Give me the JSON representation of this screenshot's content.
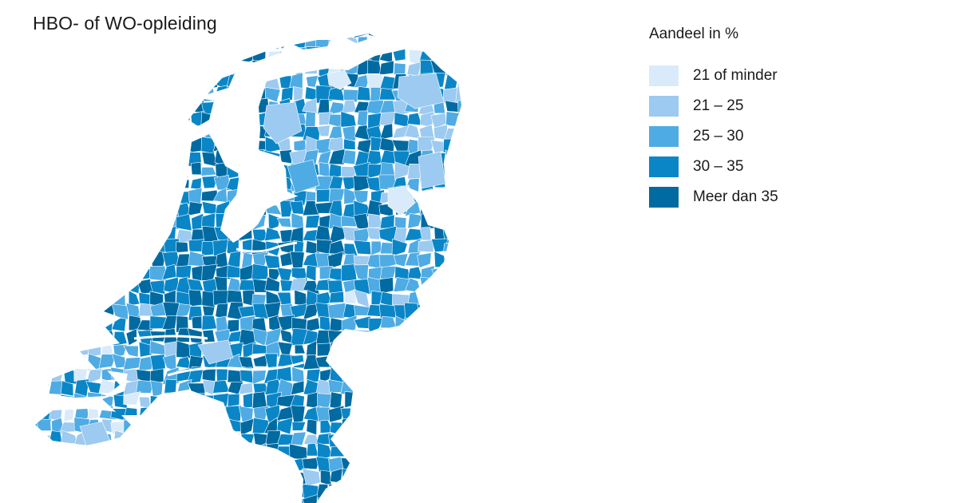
{
  "title": "HBO- of WO-opleiding",
  "legend": {
    "title": "Aandeel in %",
    "items": [
      {
        "label": "21 of minder",
        "color": "#d9ebfa"
      },
      {
        "label": "21 – 25",
        "color": "#9ccaf0"
      },
      {
        "label": "25 – 30",
        "color": "#4fabe3"
      },
      {
        "label": "30 – 35",
        "color": "#0a86c7"
      },
      {
        "label": "Meer dan 35",
        "color": "#006aa1"
      }
    ]
  },
  "map": {
    "border_color": "#ffffff",
    "background_color": "#ffffff"
  }
}
